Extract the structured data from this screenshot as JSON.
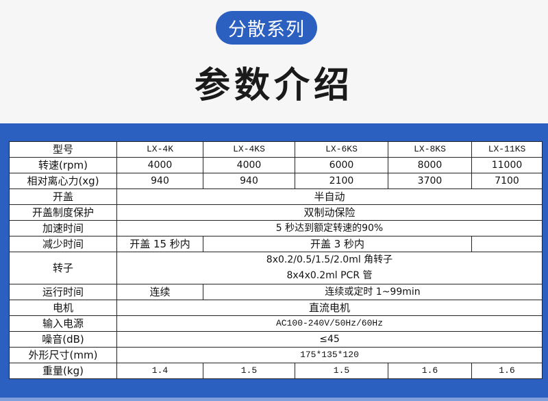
{
  "header": {
    "series_badge": "分散系列",
    "title": "参数介绍"
  },
  "colors": {
    "brand_blue": "#2b5fc0",
    "background": "#f6f6f6"
  },
  "table": {
    "model_label": "型号",
    "models": [
      "LX-4K",
      "LX-4KS",
      "LX-6KS",
      "LX-8KS",
      "LX-11KS"
    ],
    "speed_label": "转速(rpm)",
    "speeds": [
      "4000",
      "4000",
      "6000",
      "8000",
      "11000"
    ],
    "rcf_label": "相对离心力(xg)",
    "rcf": [
      "940",
      "940",
      "2100",
      "3700",
      "7100"
    ],
    "lid_label": "开盖",
    "lid": "半自动",
    "lid_protect_label": "开盖制度保护",
    "lid_protect": "双制动保险",
    "accel_label": "加速时间",
    "accel": "5 秒达到额定转速的90%",
    "decel_label": "减少时间",
    "decel_first": "开盖 15 秒内",
    "decel_rest": "开盖 3 秒内",
    "decel_last": "",
    "rotor_label": "转子",
    "rotor_line1": "8x0.2/0.5/1.5/2.0ml 角转子",
    "rotor_line2": "8x4x0.2ml PCR 管",
    "runtime_label": "运行时间",
    "runtime_first": "连续",
    "runtime_rest": "连续或定时 1~99min",
    "motor_label": "电机",
    "motor": "直流电机",
    "power_label": "输入电源",
    "power": "AC100-240V/50Hz/60Hz",
    "noise_label": "噪音(dB)",
    "noise": "≤45",
    "size_label": "外形尺寸(mm)",
    "size": "175*135*120",
    "weight_label": "重量(kg)",
    "weights": [
      "1.4",
      "1.5",
      "1.5",
      "1.6",
      "1.6"
    ]
  }
}
